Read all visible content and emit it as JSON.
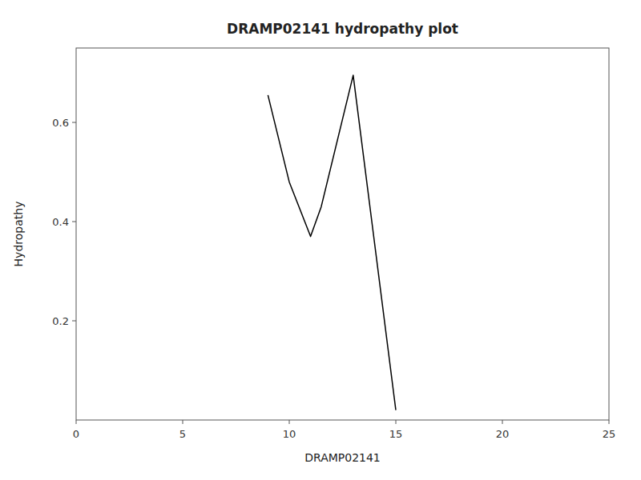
{
  "chart_data": {
    "type": "line",
    "title": "DRAMP02141 hydropathy plot",
    "xlabel": "DRAMP02141",
    "ylabel": "Hydropathy",
    "x": [
      9.0,
      10.0,
      11.0,
      11.5,
      13.0,
      15.0
    ],
    "values": [
      0.655,
      0.48,
      0.37,
      0.43,
      0.695,
      0.02
    ],
    "color": "#000000",
    "xlim": [
      0,
      25
    ],
    "ylim": [
      0,
      0.75
    ],
    "xticks": [
      0,
      5,
      10,
      15,
      20,
      25
    ],
    "yticks": [
      0.2,
      0.4,
      0.6
    ],
    "grid": false
  }
}
